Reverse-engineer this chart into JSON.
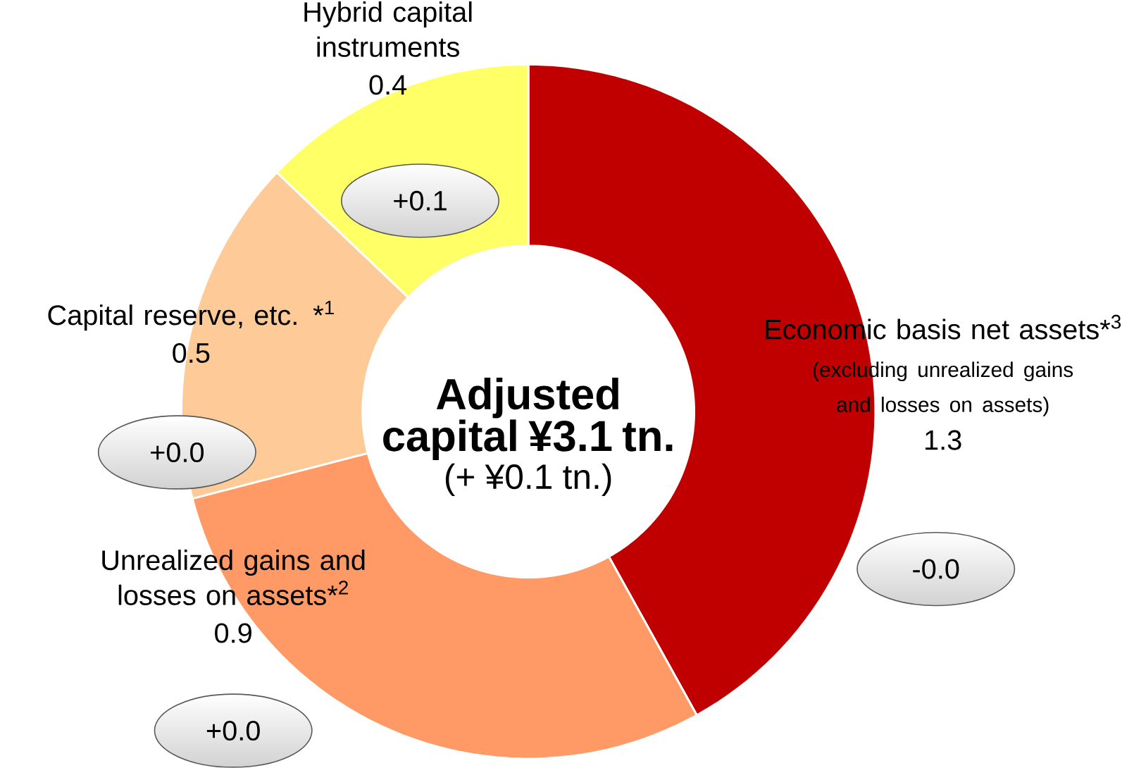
{
  "chart_data": {
    "type": "donut",
    "title": "Adjusted capital ¥3.1 tn.",
    "subtitle": "(+ ¥0.1 tn.)",
    "categories": [
      "Economic basis net assets*$^{3}$",
      "Unrealized gains and losses on assets*$^{2}$",
      "Capital reserve, etc. *$^{1}$",
      "Hybrid capital instruments"
    ],
    "values": [
      1.3,
      0.9,
      0.5,
      0.4
    ],
    "colors": [
      "#c00000",
      "#ff9966",
      "#fdca98",
      "#ffff66"
    ],
    "data_labels": true,
    "annotations": [
      "-0.0",
      "+0.0",
      "+0.0",
      "+0.1",
      "(excluding unrealized gains and losses on assets)"
    ]
  }
}
